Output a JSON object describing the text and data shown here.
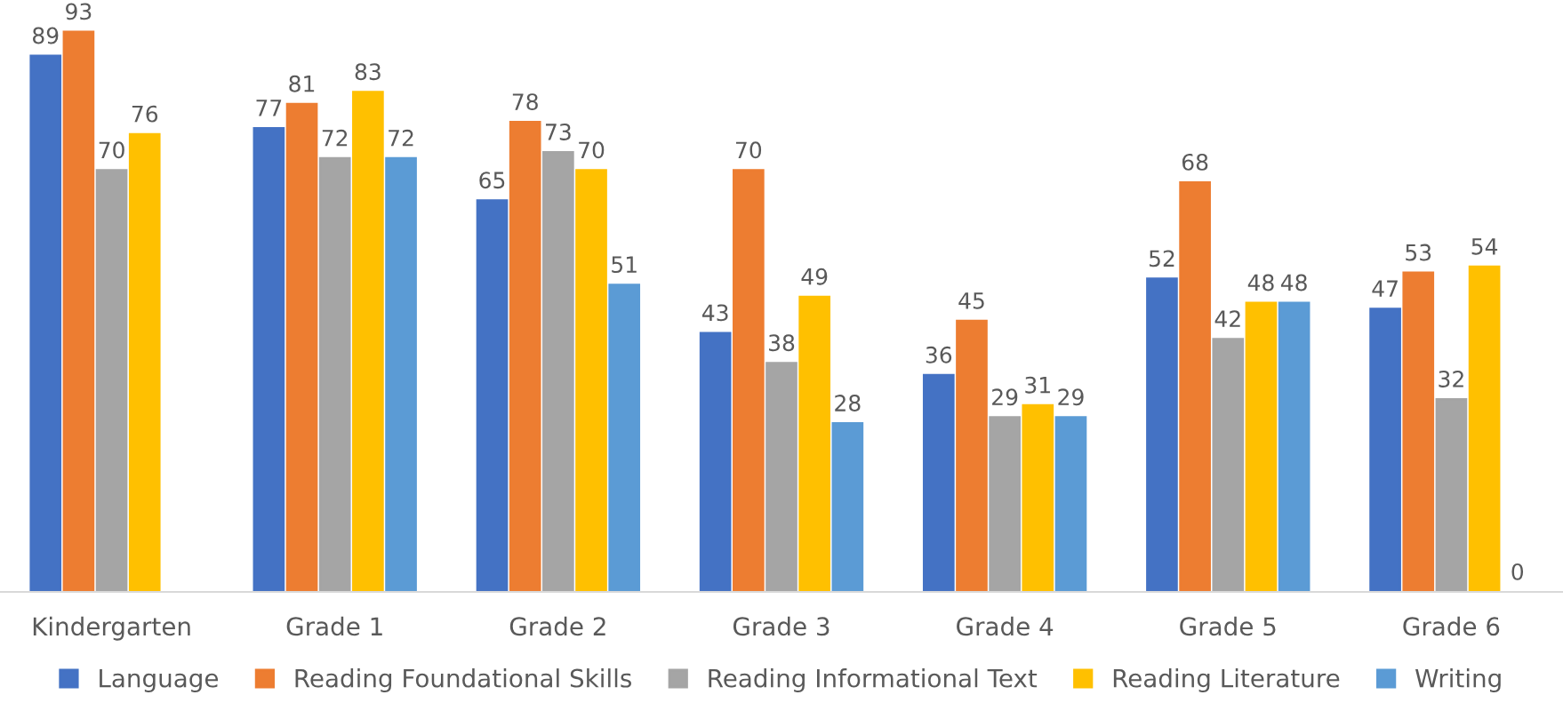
{
  "chart_data": {
    "type": "bar",
    "categories": [
      "Kindergarten",
      "Grade 1",
      "Grade 2",
      "Grade 3",
      "Grade 4",
      "Grade 5",
      "Grade 6"
    ],
    "series": [
      {
        "name": "Language",
        "color": "#4472c4",
        "values": [
          89,
          77,
          65,
          43,
          36,
          52,
          47
        ]
      },
      {
        "name": "Reading Foundational Skills",
        "color": "#ed7d31",
        "values": [
          93,
          81,
          78,
          70,
          45,
          68,
          53
        ]
      },
      {
        "name": "Reading Informational Text",
        "color": "#a5a5a5",
        "values": [
          70,
          72,
          73,
          38,
          29,
          42,
          32
        ]
      },
      {
        "name": "Reading Literature",
        "color": "#ffc000",
        "values": [
          76,
          83,
          70,
          49,
          31,
          48,
          54
        ]
      },
      {
        "name": "Writing",
        "color": "#5b9bd5",
        "values": [
          null,
          72,
          51,
          28,
          29,
          48,
          0
        ]
      }
    ],
    "tick_labels": "x",
    "data_labels": true,
    "grid": false,
    "legend": "bottom"
  }
}
